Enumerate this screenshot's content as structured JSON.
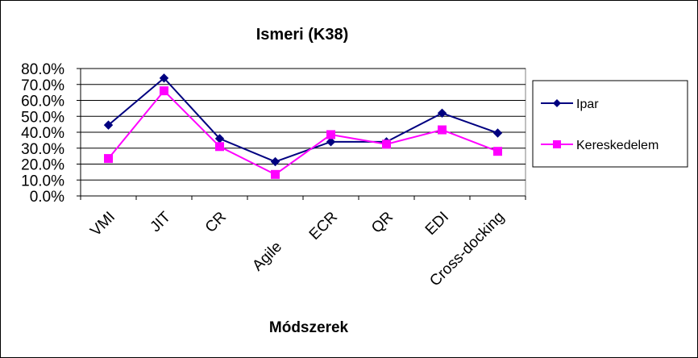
{
  "chart_data": {
    "type": "line",
    "title": "Ismeri (K38)",
    "xlabel": "Módszerek",
    "ylabel": "",
    "categories": [
      "VMI",
      "JIT",
      "CR",
      "Agile",
      "ECR",
      "QR",
      "EDI",
      "Cross-docking"
    ],
    "y_ticks": [
      "0.0%",
      "10.0%",
      "20.0%",
      "30.0%",
      "40.0%",
      "50.0%",
      "60.0%",
      "70.0%",
      "80.0%"
    ],
    "ylim": [
      0,
      80
    ],
    "grid": "horizontal",
    "legend_position": "right",
    "series": [
      {
        "name": "Ipar",
        "color": "#000080",
        "marker": "diamond",
        "values": [
          44.5,
          74,
          36,
          21.5,
          34,
          34,
          52,
          39.5
        ]
      },
      {
        "name": "Kereskedelem",
        "color": "#FF00FF",
        "marker": "square",
        "values": [
          23.5,
          66,
          31,
          13.5,
          38.5,
          32.5,
          41.5,
          28
        ]
      }
    ]
  }
}
